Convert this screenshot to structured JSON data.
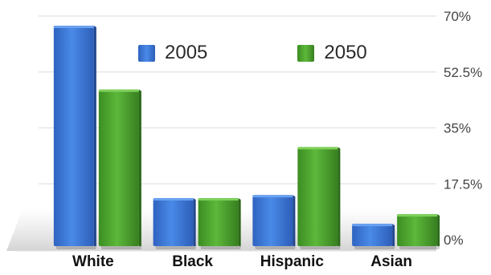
{
  "chart_data": {
    "type": "bar",
    "title": "",
    "xlabel": "",
    "ylabel": "",
    "categories": [
      "White",
      "Black",
      "Hispanic",
      "Asian"
    ],
    "series": [
      {
        "name": "2005",
        "values": [
          67,
          13,
          14,
          5
        ],
        "color": "#3d78d8"
      },
      {
        "name": "2050",
        "values": [
          47,
          13,
          29,
          8
        ],
        "color": "#4fa82e"
      }
    ],
    "ylim": [
      0,
      70
    ],
    "yticks": [
      "0%",
      "17.5%",
      "35%",
      "52.5%",
      "70%"
    ],
    "ytick_values": [
      0,
      17.5,
      35,
      52.5,
      70
    ],
    "grid": true,
    "legend": "top"
  }
}
